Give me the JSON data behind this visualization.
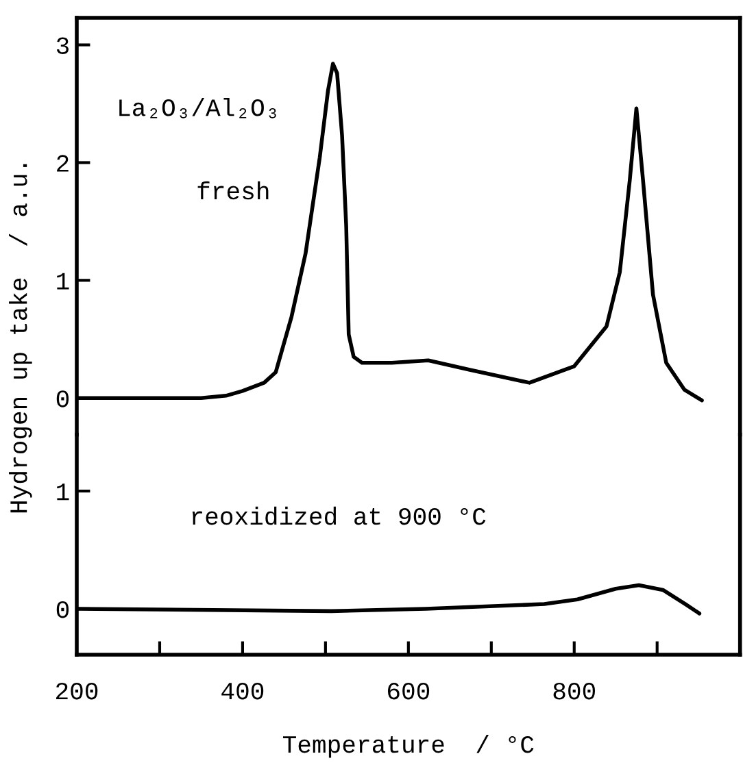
{
  "chart_data": [
    {
      "type": "line",
      "ylabel": "Hydrogen up take  / a.u.",
      "annotations": [
        "La₂O₃/Al₂O₃",
        "fresh"
      ],
      "xlim": [
        200,
        1000
      ],
      "ylim": [
        -0.31,
        3.23
      ],
      "yticks": [
        0,
        1,
        2,
        3
      ],
      "tick_labels": "y",
      "grid": false,
      "legend": false,
      "marker": "none",
      "line_style": "solid",
      "series": [
        {
          "color": "#000000",
          "x": [
            200,
            350,
            380,
            400,
            426,
            440,
            459,
            476,
            493,
            503,
            509,
            514,
            520,
            525,
            528,
            534,
            544,
            580,
            624,
            674,
            746,
            800,
            839,
            855,
            867,
            875,
            883,
            895,
            911,
            933,
            954
          ],
          "values": [
            0,
            0,
            0.02,
            0.06,
            0.13,
            0.22,
            0.69,
            1.23,
            2.04,
            2.61,
            2.84,
            2.76,
            2.23,
            1.46,
            0.54,
            0.35,
            0.3,
            0.3,
            0.32,
            0.24,
            0.13,
            0.27,
            0.61,
            1.07,
            1.85,
            2.46,
            1.85,
            0.88,
            0.3,
            0.07,
            -0.02
          ]
        }
      ]
    },
    {
      "type": "line",
      "xlabel": "Temperature  / °C",
      "annotations": [
        "reoxidized at 900 °C"
      ],
      "xlim": [
        200,
        1000
      ],
      "ylim": [
        -0.39,
        1.48
      ],
      "xticks": [
        200,
        {
          "value": 300,
          "label": null
        },
        400,
        {
          "value": 500,
          "label": null
        },
        600,
        {
          "value": 700,
          "label": null
        },
        800,
        {
          "value": 900,
          "label": null
        }
      ],
      "yticks": [
        0,
        1
      ],
      "grid": false,
      "legend": false,
      "marker": "none",
      "line_style": "solid",
      "series": [
        {
          "color": "#000000",
          "x": [
            200,
            507,
            621,
            764,
            804,
            850,
            878,
            907,
            934,
            951
          ],
          "values": [
            0,
            -0.02,
            0,
            0.04,
            0.08,
            0.17,
            0.2,
            0.16,
            0.04,
            -0.04
          ]
        }
      ]
    }
  ]
}
